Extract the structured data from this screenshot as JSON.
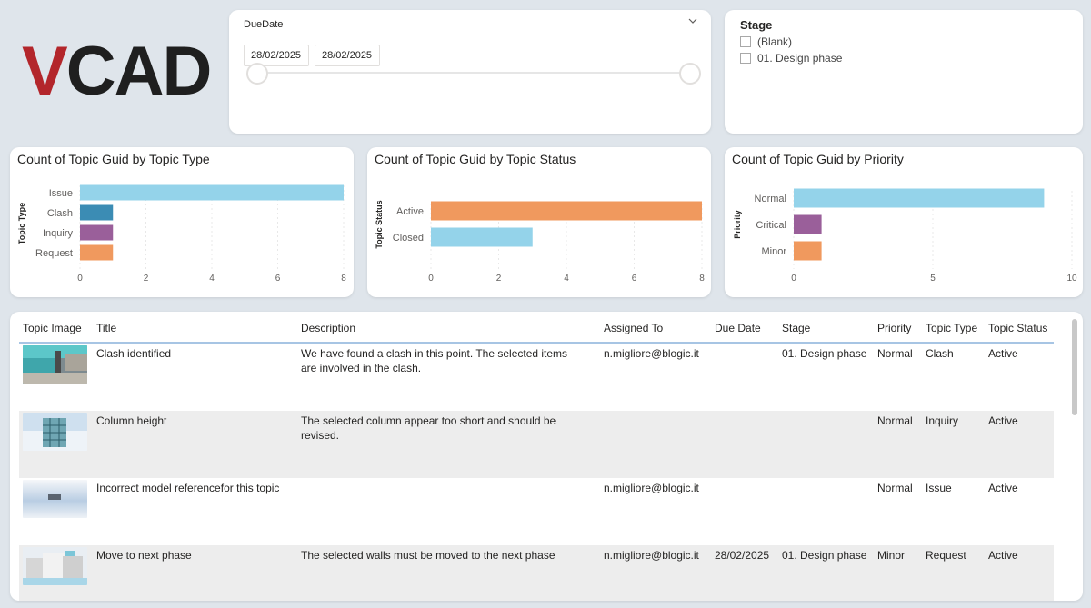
{
  "logo": {
    "text": "VCAD",
    "v_color": "#b3262b",
    "rest_color": "#1f1f1f"
  },
  "date_slicer": {
    "title": "DueDate",
    "start": "28/02/2025",
    "end": "28/02/2025",
    "chevron_icon": "chevron-down-icon"
  },
  "stage_slicer": {
    "title": "Stage",
    "options": [
      "(Blank)",
      "01. Design phase"
    ]
  },
  "charts": {
    "type": {
      "title": "Count of Topic Guid by Topic Type",
      "ylabel": "Topic Type",
      "ticks": [
        "0",
        "2",
        "4",
        "6",
        "8"
      ]
    },
    "status": {
      "title": "Count of Topic Guid by Topic Status",
      "ylabel": "Topic Status",
      "ticks": [
        "0",
        "2",
        "4",
        "6",
        "8"
      ]
    },
    "priority": {
      "title": "Count of Topic Guid by Priority",
      "ylabel": "Priority",
      "ticks": [
        "0",
        "5",
        "10"
      ]
    }
  },
  "chart_data": [
    {
      "type": "bar",
      "orientation": "horizontal",
      "title": "Count of Topic Guid by Topic Type",
      "ylabel": "Topic Type",
      "categories": [
        "Issue",
        "Clash",
        "Inquiry",
        "Request"
      ],
      "values": [
        8,
        1,
        1,
        1
      ],
      "colors": [
        "#94d3ea",
        "#3b8cb4",
        "#9a5f9a",
        "#f0995e"
      ],
      "xlim": [
        0,
        8
      ],
      "grid": true
    },
    {
      "type": "bar",
      "orientation": "horizontal",
      "title": "Count of Topic Guid by Topic Status",
      "ylabel": "Topic Status",
      "categories": [
        "Active",
        "Closed"
      ],
      "values": [
        8,
        3
      ],
      "colors": [
        "#f0995e",
        "#94d3ea"
      ],
      "xlim": [
        0,
        8
      ],
      "grid": true
    },
    {
      "type": "bar",
      "orientation": "horizontal",
      "title": "Count of Topic Guid by Priority",
      "ylabel": "Priority",
      "categories": [
        "Normal",
        "Critical",
        "Minor"
      ],
      "values": [
        9,
        1,
        1
      ],
      "colors": [
        "#94d3ea",
        "#9a5f9a",
        "#f0995e"
      ],
      "xlim": [
        0,
        10
      ],
      "grid": true
    }
  ],
  "table": {
    "columns": [
      "Topic Image",
      "Title",
      "Description",
      "Assigned To",
      "Due Date",
      "Stage",
      "Priority",
      "Topic Type",
      "Topic Status"
    ],
    "rows": [
      {
        "title": "Clash identified",
        "description_lines": [
          "We have found a clash in this point. The selected items",
          "are involved in the clash."
        ],
        "assigned_to": "n.migliore@blogic.it",
        "due_date": "",
        "stage": "01. Design phase",
        "priority": "Normal",
        "topic_type": "Clash",
        "topic_status": "Active"
      },
      {
        "title": "Column height",
        "description_lines": [
          "The selected column appear too short and should be",
          "revised."
        ],
        "assigned_to": "",
        "due_date": "",
        "stage": "",
        "priority": "Normal",
        "topic_type": "Inquiry",
        "topic_status": "Active"
      },
      {
        "title": "Incorrect model referencefor this topic",
        "description_lines": [
          "",
          ""
        ],
        "assigned_to": "n.migliore@blogic.it",
        "due_date": "",
        "stage": "",
        "priority": "Normal",
        "topic_type": "Issue",
        "topic_status": "Active"
      },
      {
        "title": "Move to next phase",
        "description_lines": [
          "The selected walls must be moved to the next phase",
          ""
        ],
        "assigned_to": "n.migliore@blogic.it",
        "due_date": "28/02/2025",
        "stage": "01. Design phase",
        "priority": "Minor",
        "topic_type": "Request",
        "topic_status": "Active"
      }
    ]
  }
}
